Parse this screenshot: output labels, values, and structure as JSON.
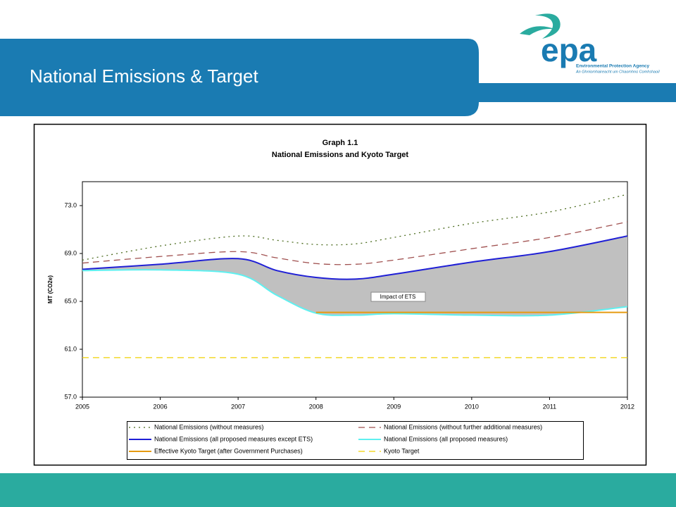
{
  "header": {
    "title": "National Emissions & Target",
    "logo": "epa",
    "logo_line1": "Environmental Protection Agency",
    "logo_line2": "An Ghníomhaireacht um Chaomhnú Comhshaoil"
  },
  "chart_data": {
    "type": "line",
    "title": "Graph 1.1",
    "subtitle": "National Emissions and Kyoto Target",
    "ylabel": "MT (CO2e)",
    "annotation": "Impact of ETS",
    "x": [
      2005,
      2006,
      2007,
      2007.5,
      2008,
      2008.5,
      2009,
      2010,
      2011,
      2012
    ],
    "xlim": [
      2005,
      2012
    ],
    "xticks": [
      2005,
      2006,
      2007,
      2008,
      2009,
      2010,
      2011,
      2012
    ],
    "ylim": [
      57,
      75
    ],
    "yticks": [
      {
        "value": 57,
        "label": "57.0"
      },
      {
        "value": 61,
        "label": "61.0"
      },
      {
        "value": 65,
        "label": "65.0"
      },
      {
        "value": 69,
        "label": "69.0"
      },
      {
        "value": 73,
        "label": "73.0"
      }
    ],
    "fill_between": [
      "National Emissions (all proposed measures except ETS)",
      "National Emissions (all proposed measures)"
    ],
    "fill_color": "#c0c0c0",
    "series": [
      {
        "name": "National Emissions (without measures)",
        "color": "#4b6b1e",
        "style": "dotted",
        "values": [
          68.45,
          69.63,
          70.46,
          70.1,
          69.75,
          69.8,
          70.34,
          71.52,
          72.47,
          73.94
        ]
      },
      {
        "name": "National Emissions (without further additional measures)",
        "color": "#a0504f",
        "style": "dashed",
        "values": [
          68.2,
          68.75,
          69.16,
          68.63,
          68.16,
          68.1,
          68.45,
          69.4,
          70.34,
          71.64
        ]
      },
      {
        "name": "National Emissions (all proposed measures except ETS)",
        "color": "#1f1fd6",
        "style": "solid",
        "values": [
          67.68,
          68.1,
          68.57,
          67.57,
          67.0,
          66.86,
          67.27,
          68.28,
          69.16,
          70.46
        ]
      },
      {
        "name": "National Emissions (all proposed measures)",
        "color": "#5ff0f0",
        "style": "solid",
        "values": [
          67.57,
          67.63,
          67.27,
          65.5,
          64.02,
          63.85,
          63.97,
          63.85,
          63.85,
          64.56
        ]
      },
      {
        "name": "Effective Kyoto Target (after Government Purchases)",
        "color": "#e59a10",
        "style": "solid",
        "values": [
          null,
          null,
          null,
          null,
          64.08,
          64.08,
          64.08,
          64.08,
          64.08,
          64.08
        ]
      },
      {
        "name": "Kyoto Target",
        "color": "#f0d000",
        "style": "dashed",
        "values": [
          60.3,
          60.3,
          60.3,
          60.3,
          60.3,
          60.3,
          60.3,
          60.3,
          60.3,
          60.3
        ]
      }
    ]
  }
}
